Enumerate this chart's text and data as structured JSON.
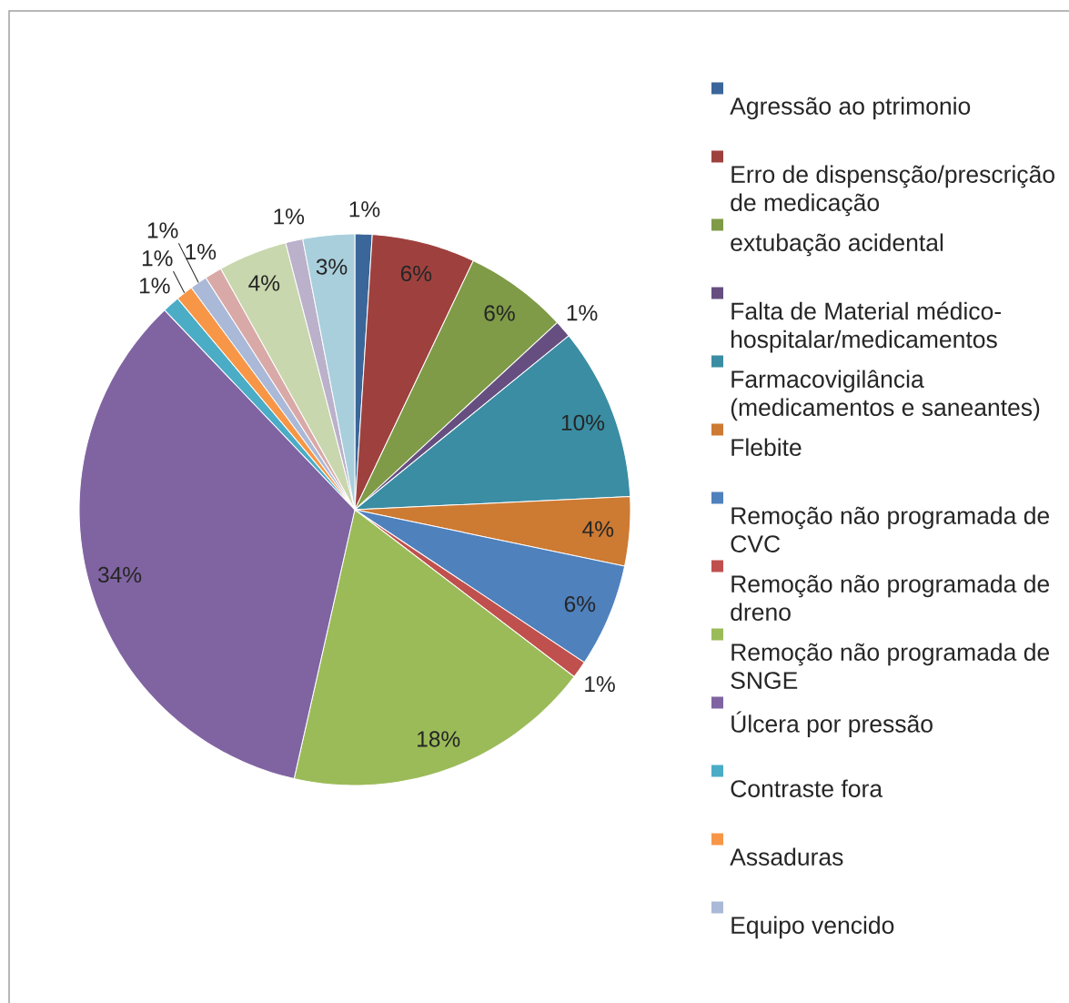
{
  "chart_data": {
    "type": "pie",
    "categories": [
      "Agressão ao ptrimonio",
      "Erro de dispensção/prescrição de medicação",
      "extubação acidental",
      "Falta de Material médico-hospitalar/medicamentos",
      "Farmacovigilância (medicamentos e saneantes)",
      "Flebite",
      "Remoção não programada de CVC",
      "Remoção não programada de dreno",
      "Remoção não programada de SNGE",
      "Úlcera por pressão",
      "Contraste fora",
      "Assaduras",
      "Equipo vencido",
      null,
      null,
      null,
      null
    ],
    "values": [
      1,
      6,
      6,
      1,
      10,
      4,
      6,
      1,
      18,
      34,
      1,
      1,
      1,
      1,
      4,
      1,
      3
    ],
    "colors": [
      "#3b6699",
      "#9e413e",
      "#7f9b47",
      "#664f80",
      "#3a8da3",
      "#cd7a33",
      "#4f81bd",
      "#c0504d",
      "#9bbb59",
      "#8064a2",
      "#4bacc6",
      "#f79646",
      "#aab9d7",
      "#d9a9a8",
      "#c8d7ad",
      "#bbb1cb",
      "#a9cfdc"
    ],
    "value_labels": [
      "1%",
      "6%",
      "6%",
      "1%",
      "10%",
      "4%",
      "6%",
      "1%",
      "18%",
      "34%",
      "1%",
      "1%",
      "1%",
      "1%",
      "4%",
      "1%",
      "3%"
    ],
    "legend": "right"
  }
}
